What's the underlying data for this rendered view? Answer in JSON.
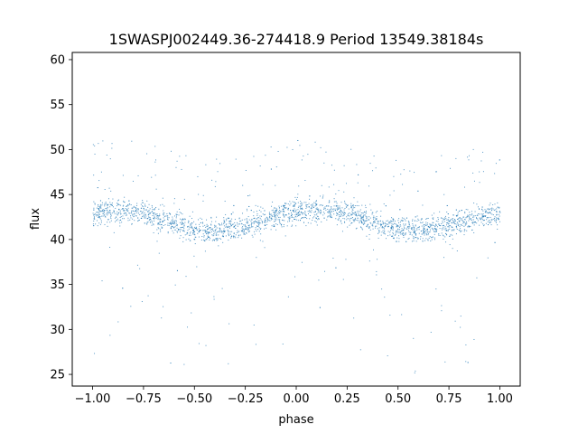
{
  "chart_data": {
    "type": "scatter",
    "title": "1SWASPJ002449.36-274418.9 Period 13549.38184s",
    "xlabel": "phase",
    "ylabel": "flux",
    "xlim": [
      -1.1,
      1.1
    ],
    "ylim": [
      23.7,
      60.8
    ],
    "x_ticks": [
      -1.0,
      -0.75,
      -0.5,
      -0.25,
      0.0,
      0.25,
      0.5,
      0.75,
      1.0
    ],
    "x_tick_labels": [
      "−1.00",
      "−0.75",
      "−0.50",
      "−0.25",
      "0.00",
      "0.25",
      "0.50",
      "0.75",
      "1.00"
    ],
    "y_ticks": [
      25,
      30,
      35,
      40,
      45,
      50,
      55,
      60
    ],
    "y_tick_labels": [
      "25",
      "30",
      "35",
      "40",
      "45",
      "50",
      "55",
      "60"
    ],
    "grid": false,
    "legend": "none",
    "marker_color": "#1f77b4",
    "series": [
      {
        "x": [
          -1.0,
          -0.9,
          -0.8,
          -0.7,
          -0.6,
          -0.5,
          -0.4,
          -0.3,
          -0.2,
          -0.1,
          0.0,
          0.1,
          0.2,
          0.3,
          0.4,
          0.5,
          0.6,
          0.7,
          0.8,
          0.9,
          1.0
        ],
        "y": [
          43.0,
          43.3,
          43.2,
          42.6,
          41.8,
          41.2,
          41.0,
          41.4,
          42.0,
          42.7,
          43.2,
          43.4,
          43.2,
          42.7,
          41.9,
          41.3,
          41.0,
          41.4,
          42.0,
          42.6,
          43.0
        ]
      }
    ]
  }
}
